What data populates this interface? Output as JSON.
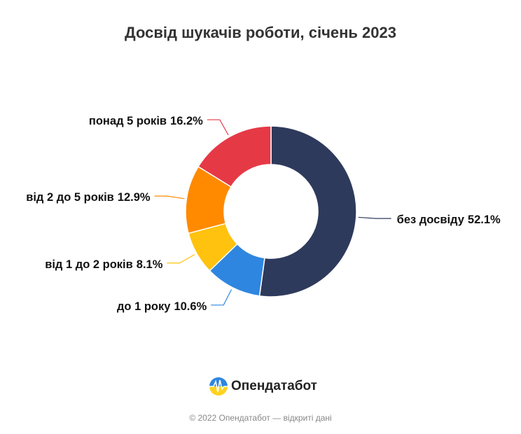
{
  "chart_data": {
    "type": "donut",
    "title": "Досвід шукачів роботи, січень 2023",
    "categories": [
      "без досвіду",
      "до 1 року",
      "від 1 до 2 років",
      "від 2 до 5 років",
      "понад 5 років"
    ],
    "values": [
      52.1,
      10.6,
      8.1,
      12.9,
      16.2
    ],
    "value_labels": [
      "52.1%",
      "10.6%",
      "8.1%",
      "12.9%",
      "16.2%"
    ],
    "colors": [
      "#2e3a5c",
      "#2f86e0",
      "#ffc20e",
      "#ff8a00",
      "#e63946"
    ]
  },
  "footer": {
    "brand": "Опендатабот",
    "copyright": "© 2022 Опендатабот — відкриті дані"
  }
}
